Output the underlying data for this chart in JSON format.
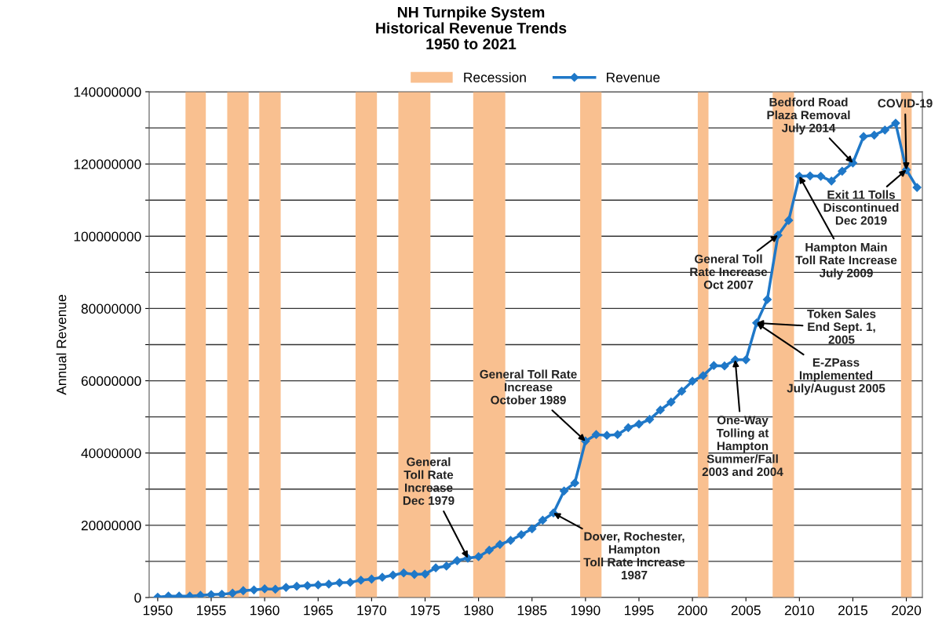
{
  "chart_data": {
    "type": "line",
    "title": "NH Turnpike System\nHistorical Revenue Trends\n1950 to 2021",
    "ylabel": "Annual Revenue",
    "x": [
      1950,
      1951,
      1952,
      1953,
      1954,
      1955,
      1956,
      1957,
      1958,
      1959,
      1960,
      1961,
      1962,
      1963,
      1964,
      1965,
      1966,
      1967,
      1968,
      1969,
      1970,
      1971,
      1972,
      1973,
      1974,
      1975,
      1976,
      1977,
      1978,
      1979,
      1980,
      1981,
      1982,
      1983,
      1984,
      1985,
      1986,
      1987,
      1988,
      1989,
      1990,
      1991,
      1992,
      1993,
      1994,
      1995,
      1996,
      1997,
      1998,
      1999,
      2000,
      2001,
      2002,
      2003,
      2004,
      2005,
      2006,
      2007,
      2008,
      2009,
      2010,
      2011,
      2012,
      2013,
      2014,
      2015,
      2016,
      2017,
      2018,
      2019,
      2020,
      2021
    ],
    "series": [
      {
        "name": "Revenue",
        "color": "#1f78c8",
        "values": [
          100000,
          400000,
          400000,
          400000,
          600000,
          800000,
          900000,
          1200000,
          1900000,
          2100000,
          2400000,
          2300000,
          2800000,
          3100000,
          3300000,
          3500000,
          3700000,
          4100000,
          4200000,
          4800000,
          5100000,
          5600000,
          6200000,
          6800000,
          6400000,
          6500000,
          8200000,
          8700000,
          10200000,
          10900000,
          11300000,
          13100000,
          14700000,
          15800000,
          17400000,
          19000000,
          21400000,
          23400000,
          29500000,
          31700000,
          43300000,
          45100000,
          44900000,
          45100000,
          47000000,
          48000000,
          49300000,
          51900000,
          54100000,
          57100000,
          59900000,
          61400000,
          64200000,
          64100000,
          65800000,
          65800000,
          76000000,
          82500000,
          100300000,
          104400000,
          116600000,
          116700000,
          116600000,
          115300000,
          118000000,
          120300000,
          127600000,
          128000000,
          129400000,
          131300000,
          118400000,
          113500000
        ]
      }
    ],
    "bands": [
      {
        "axis": "x",
        "from": 1952.6,
        "to": 1954.5,
        "label": "Recession",
        "color": "#f9c090"
      },
      {
        "axis": "x",
        "from": 1956.5,
        "to": 1958.5,
        "color": "#f9c090"
      },
      {
        "axis": "x",
        "from": 1959.5,
        "to": 1961.5,
        "color": "#f9c090"
      },
      {
        "axis": "x",
        "from": 1968.5,
        "to": 1970.5,
        "color": "#f9c090"
      },
      {
        "axis": "x",
        "from": 1972.5,
        "to": 1975.5,
        "color": "#f9c090"
      },
      {
        "axis": "x",
        "from": 1979.5,
        "to": 1982.5,
        "color": "#f9c090"
      },
      {
        "axis": "x",
        "from": 1989.5,
        "to": 1991.5,
        "color": "#f9c090"
      },
      {
        "axis": "x",
        "from": 2000.5,
        "to": 2001.5,
        "color": "#f9c090"
      },
      {
        "axis": "x",
        "from": 2007.5,
        "to": 2009.5,
        "color": "#f9c090"
      },
      {
        "axis": "x",
        "from": 2019.5,
        "to": 2020.5,
        "color": "#f9c090"
      }
    ],
    "annotations": [
      {
        "text": "General\nToll Rate\nIncrease\nDec 1979",
        "x": 1979,
        "y": 10900000
      },
      {
        "text": "General Toll Rate\nIncrease\nOctober 1989",
        "x": 1990,
        "y": 43300000
      },
      {
        "text": "Dover, Rochester,\nHampton\nToll Rate Increase\n1987",
        "x": 1987,
        "y": 23400000
      },
      {
        "text": "One-Way\nTolling at\nHampton\nSummer/Fall\n2003 and 2004",
        "x": 2004,
        "y": 65800000
      },
      {
        "text": "Token Sales\nEnd Sept. 1,\n2005",
        "x": 2006,
        "y": 76000000
      },
      {
        "text": "E-ZPass\nImplemented\nJuly/August 2005",
        "x": 2006,
        "y": 76000000
      },
      {
        "text": "General Toll\nRate Increase\nOct 2007",
        "x": 2008,
        "y": 100300000
      },
      {
        "text": "Hampton Main\nToll Rate Increase\nJuly 2009",
        "x": 2010,
        "y": 116600000
      },
      {
        "text": "Bedford Road\nPlaza Removal\nJuly 2014",
        "x": 2015,
        "y": 120300000
      },
      {
        "text": "COVID-19",
        "x": 2020,
        "y": 118400000
      },
      {
        "text": "Exit 11 Tolls\nDiscontinued\nDec 2019",
        "x": 2020,
        "y": 118400000
      }
    ],
    "xlim": [
      1949.2,
      2021.5
    ],
    "xticks": [
      1950,
      1955,
      1960,
      1965,
      1970,
      1975,
      1980,
      1985,
      1990,
      1995,
      2000,
      2005,
      2010,
      2015,
      2020
    ],
    "ylim": [
      0,
      140000000
    ],
    "yticks": [
      0,
      {
        "value": 10000000,
        "label": null
      },
      20000000,
      {
        "value": 30000000,
        "label": null
      },
      40000000,
      {
        "value": 50000000,
        "label": null
      },
      60000000,
      {
        "value": 70000000,
        "label": null
      },
      80000000,
      {
        "value": 90000000,
        "label": null
      },
      100000000,
      {
        "value": 110000000,
        "label": null
      },
      120000000,
      {
        "value": 130000000,
        "label": null
      },
      140000000
    ],
    "grid": "y",
    "legend": "top",
    "marker": "diamond",
    "line_style": "solid"
  }
}
